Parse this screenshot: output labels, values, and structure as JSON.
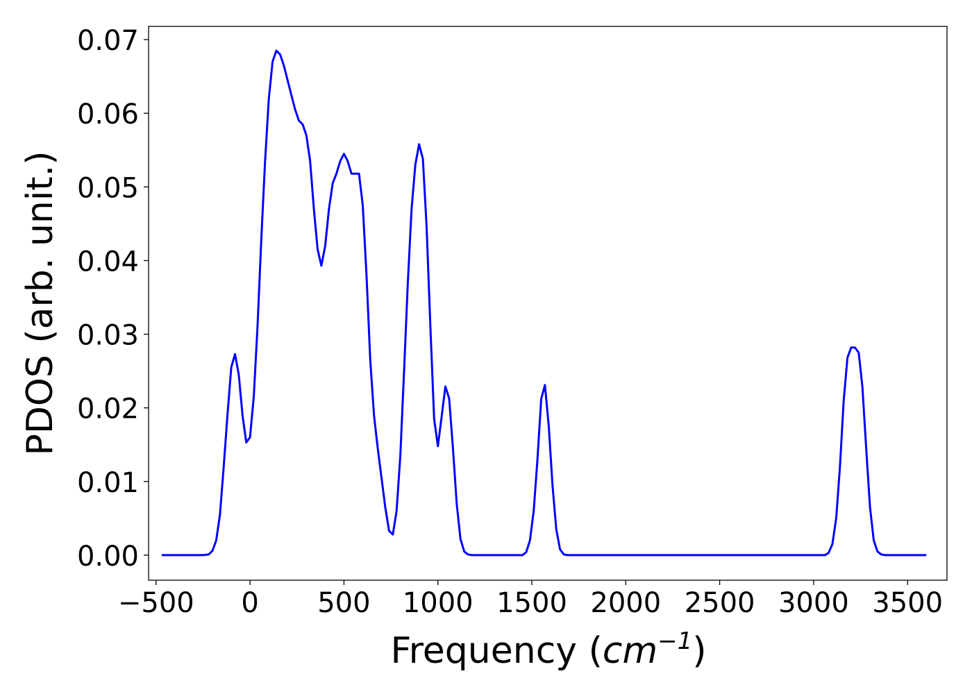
{
  "chart_data": {
    "type": "line",
    "title": "",
    "xlabel_prefix": "Frequency (",
    "xlabel_unit": "cm",
    "xlabel_sup": "−1",
    "xlabel_suffix": ")",
    "ylabel": "PDOS (arb. unit.)",
    "xlim": [
      -540,
      3710
    ],
    "ylim": [
      -0.0034,
      0.0718
    ],
    "x_ticks": [
      -500,
      0,
      500,
      1000,
      1500,
      2000,
      2500,
      3000,
      3500
    ],
    "x_tick_labels": [
      "−500",
      "0",
      "500",
      "1000",
      "1500",
      "2000",
      "2500",
      "3000",
      "3500"
    ],
    "y_ticks": [
      0.0,
      0.01,
      0.02,
      0.03,
      0.04,
      0.05,
      0.06,
      0.07
    ],
    "y_tick_labels": [
      "0.00",
      "0.01",
      "0.02",
      "0.03",
      "0.04",
      "0.05",
      "0.06",
      "0.07"
    ],
    "grid": false,
    "series": [
      {
        "color": "#0000ff",
        "x": [
          -470,
          -250,
          -220,
          -200,
          -180,
          -160,
          -140,
          -120,
          -100,
          -80,
          -60,
          -40,
          -20,
          0,
          20,
          40,
          60,
          80,
          100,
          120,
          140,
          160,
          180,
          200,
          220,
          240,
          260,
          280,
          300,
          320,
          340,
          360,
          380,
          400,
          420,
          440,
          460,
          480,
          500,
          520,
          540,
          560,
          580,
          600,
          620,
          640,
          660,
          680,
          700,
          720,
          740,
          760,
          780,
          800,
          820,
          840,
          860,
          880,
          900,
          920,
          940,
          960,
          980,
          1000,
          1020,
          1040,
          1060,
          1080,
          1100,
          1120,
          1140,
          1160,
          1180,
          1200,
          1220,
          1250,
          1450,
          1470,
          1490,
          1510,
          1530,
          1550,
          1570,
          1590,
          1610,
          1630,
          1650,
          1670,
          1690,
          1710,
          1730,
          3060,
          3080,
          3100,
          3120,
          3140,
          3160,
          3180,
          3200,
          3220,
          3240,
          3260,
          3280,
          3300,
          3320,
          3340,
          3360,
          3380,
          3400,
          3600
        ],
        "y": [
          0.0,
          0.0,
          0.0001,
          0.0006,
          0.002,
          0.0055,
          0.012,
          0.019,
          0.0255,
          0.0273,
          0.0245,
          0.019,
          0.0153,
          0.016,
          0.0215,
          0.031,
          0.043,
          0.0535,
          0.062,
          0.067,
          0.0685,
          0.068,
          0.0665,
          0.0645,
          0.0625,
          0.0605,
          0.059,
          0.0585,
          0.057,
          0.0535,
          0.047,
          0.0415,
          0.0393,
          0.042,
          0.047,
          0.0505,
          0.0518,
          0.0535,
          0.0545,
          0.0535,
          0.0518,
          0.0518,
          0.0518,
          0.0475,
          0.038,
          0.0265,
          0.019,
          0.0145,
          0.0105,
          0.0065,
          0.0033,
          0.0028,
          0.006,
          0.0135,
          0.025,
          0.037,
          0.047,
          0.053,
          0.0558,
          0.0538,
          0.0445,
          0.031,
          0.0185,
          0.0148,
          0.0188,
          0.0229,
          0.0213,
          0.0145,
          0.007,
          0.0022,
          0.0005,
          0.0001,
          0.0,
          0.0,
          0.0,
          0.0,
          0.0,
          0.0004,
          0.002,
          0.006,
          0.013,
          0.0212,
          0.0231,
          0.0175,
          0.0095,
          0.0035,
          0.0008,
          0.0001,
          0.0,
          0.0,
          0.0,
          0.0,
          0.0003,
          0.0015,
          0.005,
          0.012,
          0.021,
          0.0268,
          0.0282,
          0.0282,
          0.0275,
          0.0228,
          0.0145,
          0.0065,
          0.002,
          0.0005,
          0.0001,
          0.0,
          0.0,
          0.0
        ]
      }
    ]
  }
}
